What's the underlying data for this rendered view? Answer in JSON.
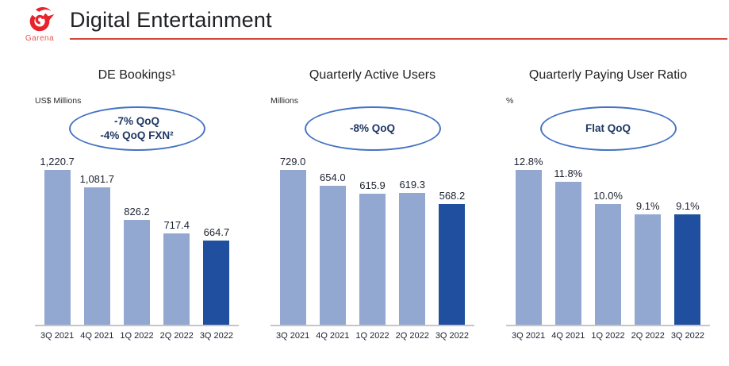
{
  "header": {
    "title": "Digital Entertainment",
    "logo_word": "Garena"
  },
  "colors": {
    "bar_light": "#92a8d1",
    "bar_dark": "#1f4f9e",
    "oval_border": "#4472c4",
    "oval_text": "#1f3864",
    "axis_line": "#c6c6c6",
    "label_text": "#1c2230",
    "title_text": "#202124",
    "logo_red": "#e8232b",
    "underline_red": "#d6463d"
  },
  "chart_data": [
    {
      "type": "bar",
      "title": "DE Bookings¹",
      "unit": "US$ Millions",
      "annotation": [
        "-7% QoQ",
        "-4% QoQ FXN²"
      ],
      "categories": [
        "3Q 2021",
        "4Q 2021",
        "1Q 2022",
        "2Q 2022",
        "3Q 2022"
      ],
      "values": [
        1220.7,
        1081.7,
        826.2,
        717.4,
        664.7
      ],
      "labels": [
        "1,220.7",
        "1,081.7",
        "826.2",
        "717.4",
        "664.7"
      ],
      "highlight_index": 4,
      "ylim": [
        0,
        1250
      ],
      "grid": false,
      "legend": false
    },
    {
      "type": "bar",
      "title": "Quarterly Active Users",
      "unit": "Millions",
      "annotation": [
        "-8% QoQ"
      ],
      "categories": [
        "3Q 2021",
        "4Q 2021",
        "1Q 2022",
        "2Q 2022",
        "3Q 2022"
      ],
      "values": [
        729.0,
        654.0,
        615.9,
        619.3,
        568.2
      ],
      "labels": [
        "729.0",
        "654.0",
        "615.9",
        "619.3",
        "568.2"
      ],
      "highlight_index": 4,
      "ylim": [
        0,
        750
      ],
      "grid": false,
      "legend": false
    },
    {
      "type": "bar",
      "title": "Quarterly Paying User Ratio",
      "unit": "%",
      "annotation": [
        "Flat QoQ"
      ],
      "categories": [
        "3Q 2021",
        "4Q 2021",
        "1Q 2022",
        "2Q 2022",
        "3Q 2022"
      ],
      "values": [
        12.8,
        11.8,
        10.0,
        9.1,
        9.1
      ],
      "labels": [
        "12.8%",
        "11.8%",
        "10.0%",
        "9.1%",
        "9.1%"
      ],
      "highlight_index": 4,
      "ylim": [
        0,
        13
      ],
      "grid": false,
      "legend": false
    }
  ]
}
